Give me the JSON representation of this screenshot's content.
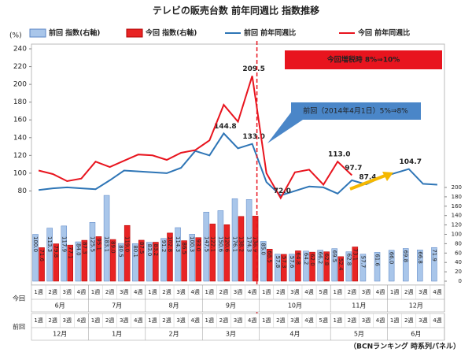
{
  "chart_data": {
    "type": "bar",
    "title": "テレビの販売台数  前年同週比  指数推移",
    "unit": "(%)",
    "categories": [
      "1週",
      "2週",
      "3週",
      "4週",
      "1週",
      "2週",
      "3週",
      "4週",
      "1週",
      "2週",
      "3週",
      "4週",
      "1週",
      "2週",
      "3週",
      "4週",
      "1週",
      "2週",
      "3週",
      "4週",
      "5週",
      "1週",
      "2週",
      "3週",
      "4週",
      "1週",
      "2週",
      "3週",
      "4週"
    ],
    "current_months": [
      {
        "label": "6月",
        "weeks": 4
      },
      {
        "label": "7月",
        "weeks": 4
      },
      {
        "label": "8月",
        "weeks": 4
      },
      {
        "label": "9月",
        "weeks": 4
      },
      {
        "label": "10月",
        "weeks": 5
      },
      {
        "label": "11月",
        "weeks": 4
      },
      {
        "label": "12月",
        "weeks": 4
      }
    ],
    "previous_months": [
      {
        "label": "12月",
        "weeks": 4
      },
      {
        "label": "1月",
        "weeks": 4
      },
      {
        "label": "2月",
        "weeks": 4
      },
      {
        "label": "3月",
        "weeks": 4
      },
      {
        "label": "4月",
        "weeks": 5
      },
      {
        "label": "5月",
        "weeks": 4
      },
      {
        "label": "6月",
        "weeks": 4
      }
    ],
    "row_labels": [
      "今回",
      "前回"
    ],
    "series": [
      {
        "name": "前回 指数(右軸)",
        "kind": "bar",
        "axis": "y2",
        "color": "#a9c6ea",
        "stroke": "#5b86c5",
        "values": [
          100.0,
          113.3,
          117.9,
          84.0,
          125.5,
          183.1,
          80.5,
          80.1,
          83.0,
          91.2,
          114.3,
          100.3,
          147.5,
          150.6,
          176.1,
          174.3,
          85.0,
          57.8,
          57.6,
          64.2,
          66.2,
          69.5,
          62.8,
          57.7,
          61.6,
          66.0,
          69.8,
          66.8,
          71.9
        ],
        "value_labels": [
          "100.0",
          "113.3",
          "117.9",
          "84.0",
          "125.5",
          "183.1",
          "80.5",
          "80.1",
          "83.0",
          "91.2",
          "114.3",
          "100.3",
          "147.5",
          "150.6",
          "176.1",
          "174.3",
          "85.0",
          "57.8",
          "57.6",
          "64.2",
          "66.2",
          "69.5",
          "62.8",
          "57.7",
          "61.6",
          "66.0",
          "69.8",
          "66.8",
          "71.9"
        ]
      },
      {
        "name": "今回 指数(右軸)",
        "kind": "bar",
        "axis": "y2",
        "color": "#e82424",
        "stroke": "#b00000",
        "values": [
          71.6,
          79.8,
          77.1,
          87.3,
          95.1,
          89.0,
          119.0,
          87.5,
          83.2,
          102.8,
          86.5,
          93.0,
          122.1,
          120.6,
          138.2,
          138.9,
          68.5,
          57.3,
          64.8,
          62.0,
          62.8,
          52.4,
          73.1,
          null,
          null,
          null,
          null,
          null,
          null
        ],
        "value_labels": [
          "71.6",
          "79.8",
          "77.1",
          "87.3",
          "95.1",
          "89.0",
          "119.0",
          "87.5",
          "83.2",
          "102.8",
          "86.5",
          "93.0",
          "122.1",
          "120.6",
          "138.2",
          "138.9",
          "68.5",
          "57.3",
          "64.8",
          "62.0",
          "62.8",
          "52.4",
          "73.1",
          null,
          null,
          null,
          null,
          null,
          null
        ]
      },
      {
        "name": "前回 前年同週比",
        "kind": "line",
        "color": "#2e75b6",
        "values": [
          81,
          83,
          84,
          83,
          82,
          92,
          103,
          102,
          101,
          100,
          106,
          125,
          120,
          144.8,
          128,
          133.0,
          90,
          75,
          80,
          85,
          84,
          77,
          92,
          87.4,
          95,
          100,
          104.7,
          88,
          87
        ],
        "value_labels": [
          null,
          null,
          null,
          null,
          null,
          null,
          null,
          null,
          null,
          null,
          null,
          null,
          null,
          "144.8",
          null,
          "133.0",
          null,
          null,
          null,
          null,
          null,
          null,
          null,
          "87.4",
          null,
          null,
          "104.7",
          null,
          null
        ]
      },
      {
        "name": "今回 前年同週比",
        "kind": "line",
        "color": "#e8141e",
        "values": [
          103,
          99,
          91,
          94,
          113,
          107,
          114,
          121,
          120,
          115,
          123,
          126,
          137,
          177,
          158,
          209.5,
          100,
          72.0,
          101,
          104,
          87,
          113.0,
          97.7,
          null,
          null,
          null,
          null,
          null,
          null
        ],
        "value_labels": [
          null,
          null,
          null,
          null,
          null,
          null,
          null,
          null,
          null,
          null,
          null,
          null,
          null,
          null,
          null,
          "209.5",
          null,
          "72.0",
          null,
          null,
          null,
          "113.0",
          "97.7",
          null,
          null,
          null,
          null,
          null,
          null
        ]
      }
    ],
    "ylim": [
      60,
      240
    ],
    "yticks": [
      80,
      100,
      120,
      140,
      160,
      180,
      200,
      220,
      240
    ],
    "y2lim": [
      0,
      200
    ],
    "y2ticks": [
      0,
      20,
      40,
      60,
      80,
      100,
      120,
      140,
      160,
      180,
      200
    ],
    "annotations": {
      "current": "今回増税時  8%⇒10%",
      "previous": "前回（2014年4月1日）5%⇒8%"
    },
    "source": "（BCNランキング  時系列パネル）"
  }
}
